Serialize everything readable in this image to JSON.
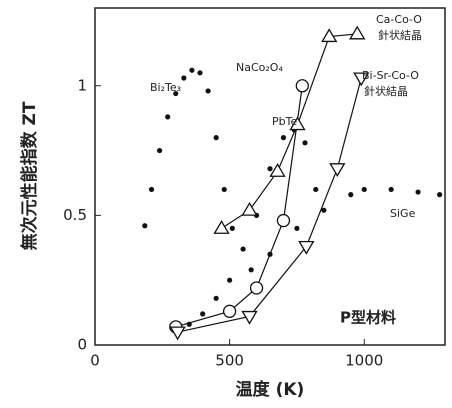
{
  "chart_data": {
    "type": "line",
    "xlabel": "温度 (K)",
    "ylabel": "無次元性能指数 ZT",
    "xlim": [
      0,
      1300
    ],
    "xticks": [
      0,
      500,
      1000
    ],
    "ylim": [
      0,
      1.3
    ],
    "yticks": [
      0,
      0.5,
      1
    ],
    "series": [
      {
        "name": "Bi₂Te₃",
        "color": "#111111",
        "marker": "dot",
        "x": [
          185,
          210,
          240,
          270,
          300,
          330,
          360,
          390,
          420,
          450,
          480,
          510
        ],
        "values": [
          0.46,
          0.6,
          0.75,
          0.88,
          0.97,
          1.03,
          1.06,
          1.05,
          0.98,
          0.8,
          0.6,
          0.45
        ]
      },
      {
        "name": "PbTe",
        "color": "#111111",
        "marker": "dot",
        "x": [
          300,
          350,
          400,
          450,
          500,
          550,
          600,
          650,
          700,
          740,
          780,
          820
        ],
        "values": [
          0.05,
          0.08,
          0.12,
          0.18,
          0.25,
          0.37,
          0.5,
          0.68,
          0.8,
          0.83,
          0.78,
          0.6
        ]
      },
      {
        "name": "SiGe",
        "color": "#111111",
        "marker": "dot",
        "x": [
          580,
          650,
          750,
          850,
          950,
          1000,
          1100,
          1200,
          1280
        ],
        "values": [
          0.29,
          0.35,
          0.45,
          0.52,
          0.58,
          0.6,
          0.6,
          0.59,
          0.58
        ]
      },
      {
        "name": "NaCo₂O₄",
        "color": "#111111",
        "marker": "circle",
        "x": [
          300,
          500,
          600,
          700,
          770
        ],
        "values": [
          0.07,
          0.13,
          0.22,
          0.48,
          1.0
        ]
      },
      {
        "name": "Ca-Co-O",
        "color": "#111111",
        "marker": "triangle-up",
        "x": [
          470,
          574,
          678,
          752,
          870,
          974
        ],
        "values": [
          0.45,
          0.52,
          0.67,
          0.85,
          1.19,
          1.2
        ]
      },
      {
        "name": "Bi-Sr-Co-O",
        "color": "#111111",
        "marker": "triangle-down",
        "x": [
          307,
          574,
          785,
          900,
          989
        ],
        "values": [
          0.05,
          0.11,
          0.38,
          0.68,
          1.03
        ]
      }
    ],
    "annotations": [
      "針状結晶",
      "針状結晶",
      "P型材料"
    ]
  }
}
